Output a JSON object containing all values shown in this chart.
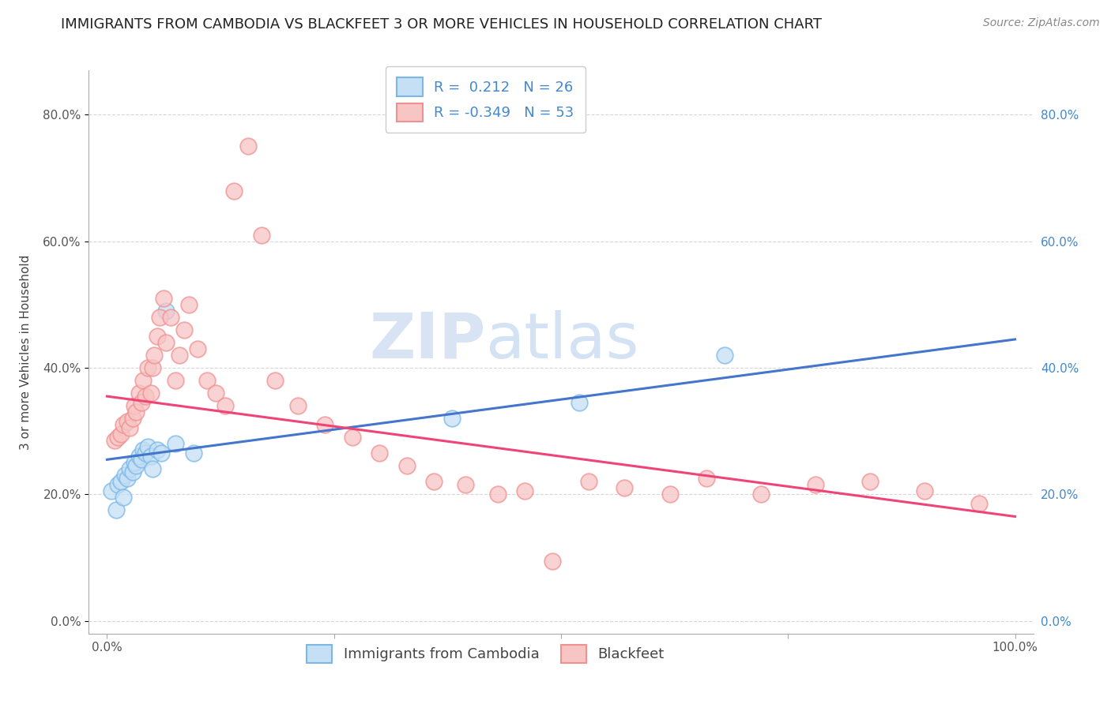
{
  "title": "IMMIGRANTS FROM CAMBODIA VS BLACKFEET 3 OR MORE VEHICLES IN HOUSEHOLD CORRELATION CHART",
  "source": "Source: ZipAtlas.com",
  "ylabel": "3 or more Vehicles in Household",
  "xlabel": "",
  "xlim": [
    -0.02,
    1.02
  ],
  "ylim": [
    -0.02,
    0.87
  ],
  "yticks": [
    0.0,
    0.2,
    0.4,
    0.6,
    0.8
  ],
  "xticks": [
    0.0,
    1.0
  ],
  "xtick_labels": [
    "0.0%",
    "100.0%"
  ],
  "legend_blue_label": "R =  0.212   N = 26",
  "legend_pink_label": "R = -0.349   N = 53",
  "blue_color": "#7ab8e8",
  "pink_color": "#f09090",
  "blue_fill": "#c5dff5",
  "pink_fill": "#f8c5c5",
  "line_blue": "#4477cc",
  "line_pink": "#ee4477",
  "background_color": "#ffffff",
  "grid_color": "#cccccc",
  "title_fontsize": 13,
  "axis_label_fontsize": 11,
  "tick_fontsize": 11,
  "legend_fontsize": 13,
  "watermark_text": "ZIPatlas",
  "blue_line_x0": 0.0,
  "blue_line_y0": 0.255,
  "blue_line_x1": 1.0,
  "blue_line_y1": 0.445,
  "pink_line_x0": 0.0,
  "pink_line_y0": 0.355,
  "pink_line_x1": 1.0,
  "pink_line_y1": 0.165,
  "blue_scatter_x": [
    0.005,
    0.01,
    0.012,
    0.015,
    0.018,
    0.02,
    0.022,
    0.025,
    0.028,
    0.03,
    0.032,
    0.035,
    0.038,
    0.04,
    0.042,
    0.045,
    0.048,
    0.05,
    0.055,
    0.06,
    0.065,
    0.075,
    0.095,
    0.38,
    0.52,
    0.68
  ],
  "blue_scatter_y": [
    0.205,
    0.175,
    0.215,
    0.22,
    0.195,
    0.23,
    0.225,
    0.24,
    0.235,
    0.25,
    0.245,
    0.26,
    0.255,
    0.27,
    0.265,
    0.275,
    0.26,
    0.24,
    0.27,
    0.265,
    0.49,
    0.28,
    0.265,
    0.32,
    0.345,
    0.42
  ],
  "pink_scatter_x": [
    0.008,
    0.012,
    0.015,
    0.018,
    0.022,
    0.025,
    0.028,
    0.03,
    0.032,
    0.035,
    0.038,
    0.04,
    0.042,
    0.045,
    0.048,
    0.05,
    0.052,
    0.055,
    0.058,
    0.062,
    0.065,
    0.07,
    0.075,
    0.08,
    0.085,
    0.09,
    0.1,
    0.11,
    0.12,
    0.13,
    0.14,
    0.155,
    0.17,
    0.185,
    0.21,
    0.24,
    0.27,
    0.3,
    0.33,
    0.36,
    0.395,
    0.43,
    0.46,
    0.49,
    0.53,
    0.57,
    0.62,
    0.66,
    0.72,
    0.78,
    0.84,
    0.9,
    0.96
  ],
  "pink_scatter_y": [
    0.285,
    0.29,
    0.295,
    0.31,
    0.315,
    0.305,
    0.32,
    0.34,
    0.33,
    0.36,
    0.345,
    0.38,
    0.355,
    0.4,
    0.36,
    0.4,
    0.42,
    0.45,
    0.48,
    0.51,
    0.44,
    0.48,
    0.38,
    0.42,
    0.46,
    0.5,
    0.43,
    0.38,
    0.36,
    0.34,
    0.68,
    0.75,
    0.61,
    0.38,
    0.34,
    0.31,
    0.29,
    0.265,
    0.245,
    0.22,
    0.215,
    0.2,
    0.205,
    0.095,
    0.22,
    0.21,
    0.2,
    0.225,
    0.2,
    0.215,
    0.22,
    0.205,
    0.185
  ]
}
